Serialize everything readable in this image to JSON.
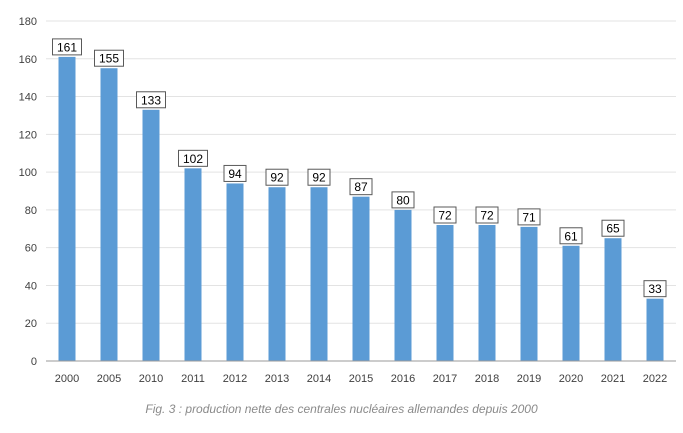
{
  "chart_data": {
    "type": "bar",
    "categories": [
      "2000",
      "2005",
      "2010",
      "2011",
      "2012",
      "2013",
      "2014",
      "2015",
      "2016",
      "2017",
      "2018",
      "2019",
      "2020",
      "2021",
      "2022"
    ],
    "values": [
      161,
      155,
      133,
      102,
      94,
      92,
      92,
      87,
      80,
      72,
      72,
      71,
      61,
      65,
      33
    ],
    "ylim": [
      0,
      180
    ],
    "yticks": [
      0,
      20,
      40,
      60,
      80,
      100,
      120,
      140,
      160,
      180
    ],
    "grid": true,
    "data_labels": true,
    "legend": "none",
    "bar_color": "#5b9bd5",
    "caption": "Fig. 3 : production nette des centrales nucléaires allemandes depuis 2000"
  }
}
